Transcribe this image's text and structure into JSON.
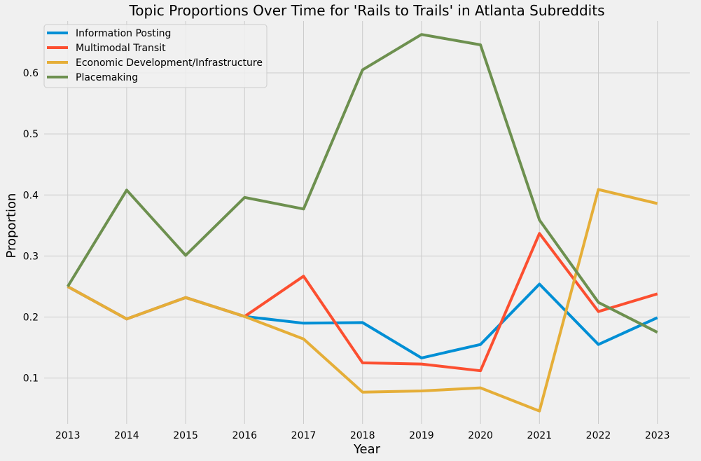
{
  "chart_data": {
    "type": "line",
    "title": "Topic Proportions Over Time for 'Rails to Trails' in Atlanta Subreddits",
    "xlabel": "Year",
    "ylabel": "Proportion",
    "x": [
      2013,
      2014,
      2015,
      2016,
      2017,
      2018,
      2019,
      2020,
      2021,
      2022,
      2023
    ],
    "xticks": [
      "2013",
      "2014",
      "2015",
      "2016",
      "2017",
      "2018",
      "2019",
      "2020",
      "2021",
      "2022",
      "2023"
    ],
    "yticks": [
      0.1,
      0.2,
      0.3,
      0.4,
      0.5,
      0.6
    ],
    "ytick_labels": [
      "0.1",
      "0.2",
      "0.3",
      "0.4",
      "0.5",
      "0.6"
    ],
    "ylim": [
      0.025,
      0.685
    ],
    "xlim": [
      2012.6,
      2023.55
    ],
    "grid": true,
    "legend_position": "top-left",
    "series": [
      {
        "name": "Information Posting",
        "color": "#008fd5",
        "values": [
          0.25,
          0.197,
          0.232,
          0.201,
          0.19,
          0.191,
          0.133,
          0.155,
          0.254,
          0.155,
          0.199
        ]
      },
      {
        "name": "Multimodal Transit",
        "color": "#fc4f30",
        "values": [
          0.25,
          0.197,
          0.232,
          0.201,
          0.267,
          0.125,
          0.123,
          0.112,
          0.337,
          0.209,
          0.238
        ]
      },
      {
        "name": "Economic Development/Infrastructure",
        "color": "#e5ae38",
        "values": [
          0.25,
          0.197,
          0.232,
          0.201,
          0.164,
          0.077,
          0.079,
          0.084,
          0.046,
          0.409,
          0.386
        ]
      },
      {
        "name": "Placemaking",
        "color": "#6d904f",
        "values": [
          0.25,
          0.408,
          0.301,
          0.396,
          0.377,
          0.605,
          0.663,
          0.646,
          0.359,
          0.224,
          0.175
        ]
      }
    ]
  }
}
